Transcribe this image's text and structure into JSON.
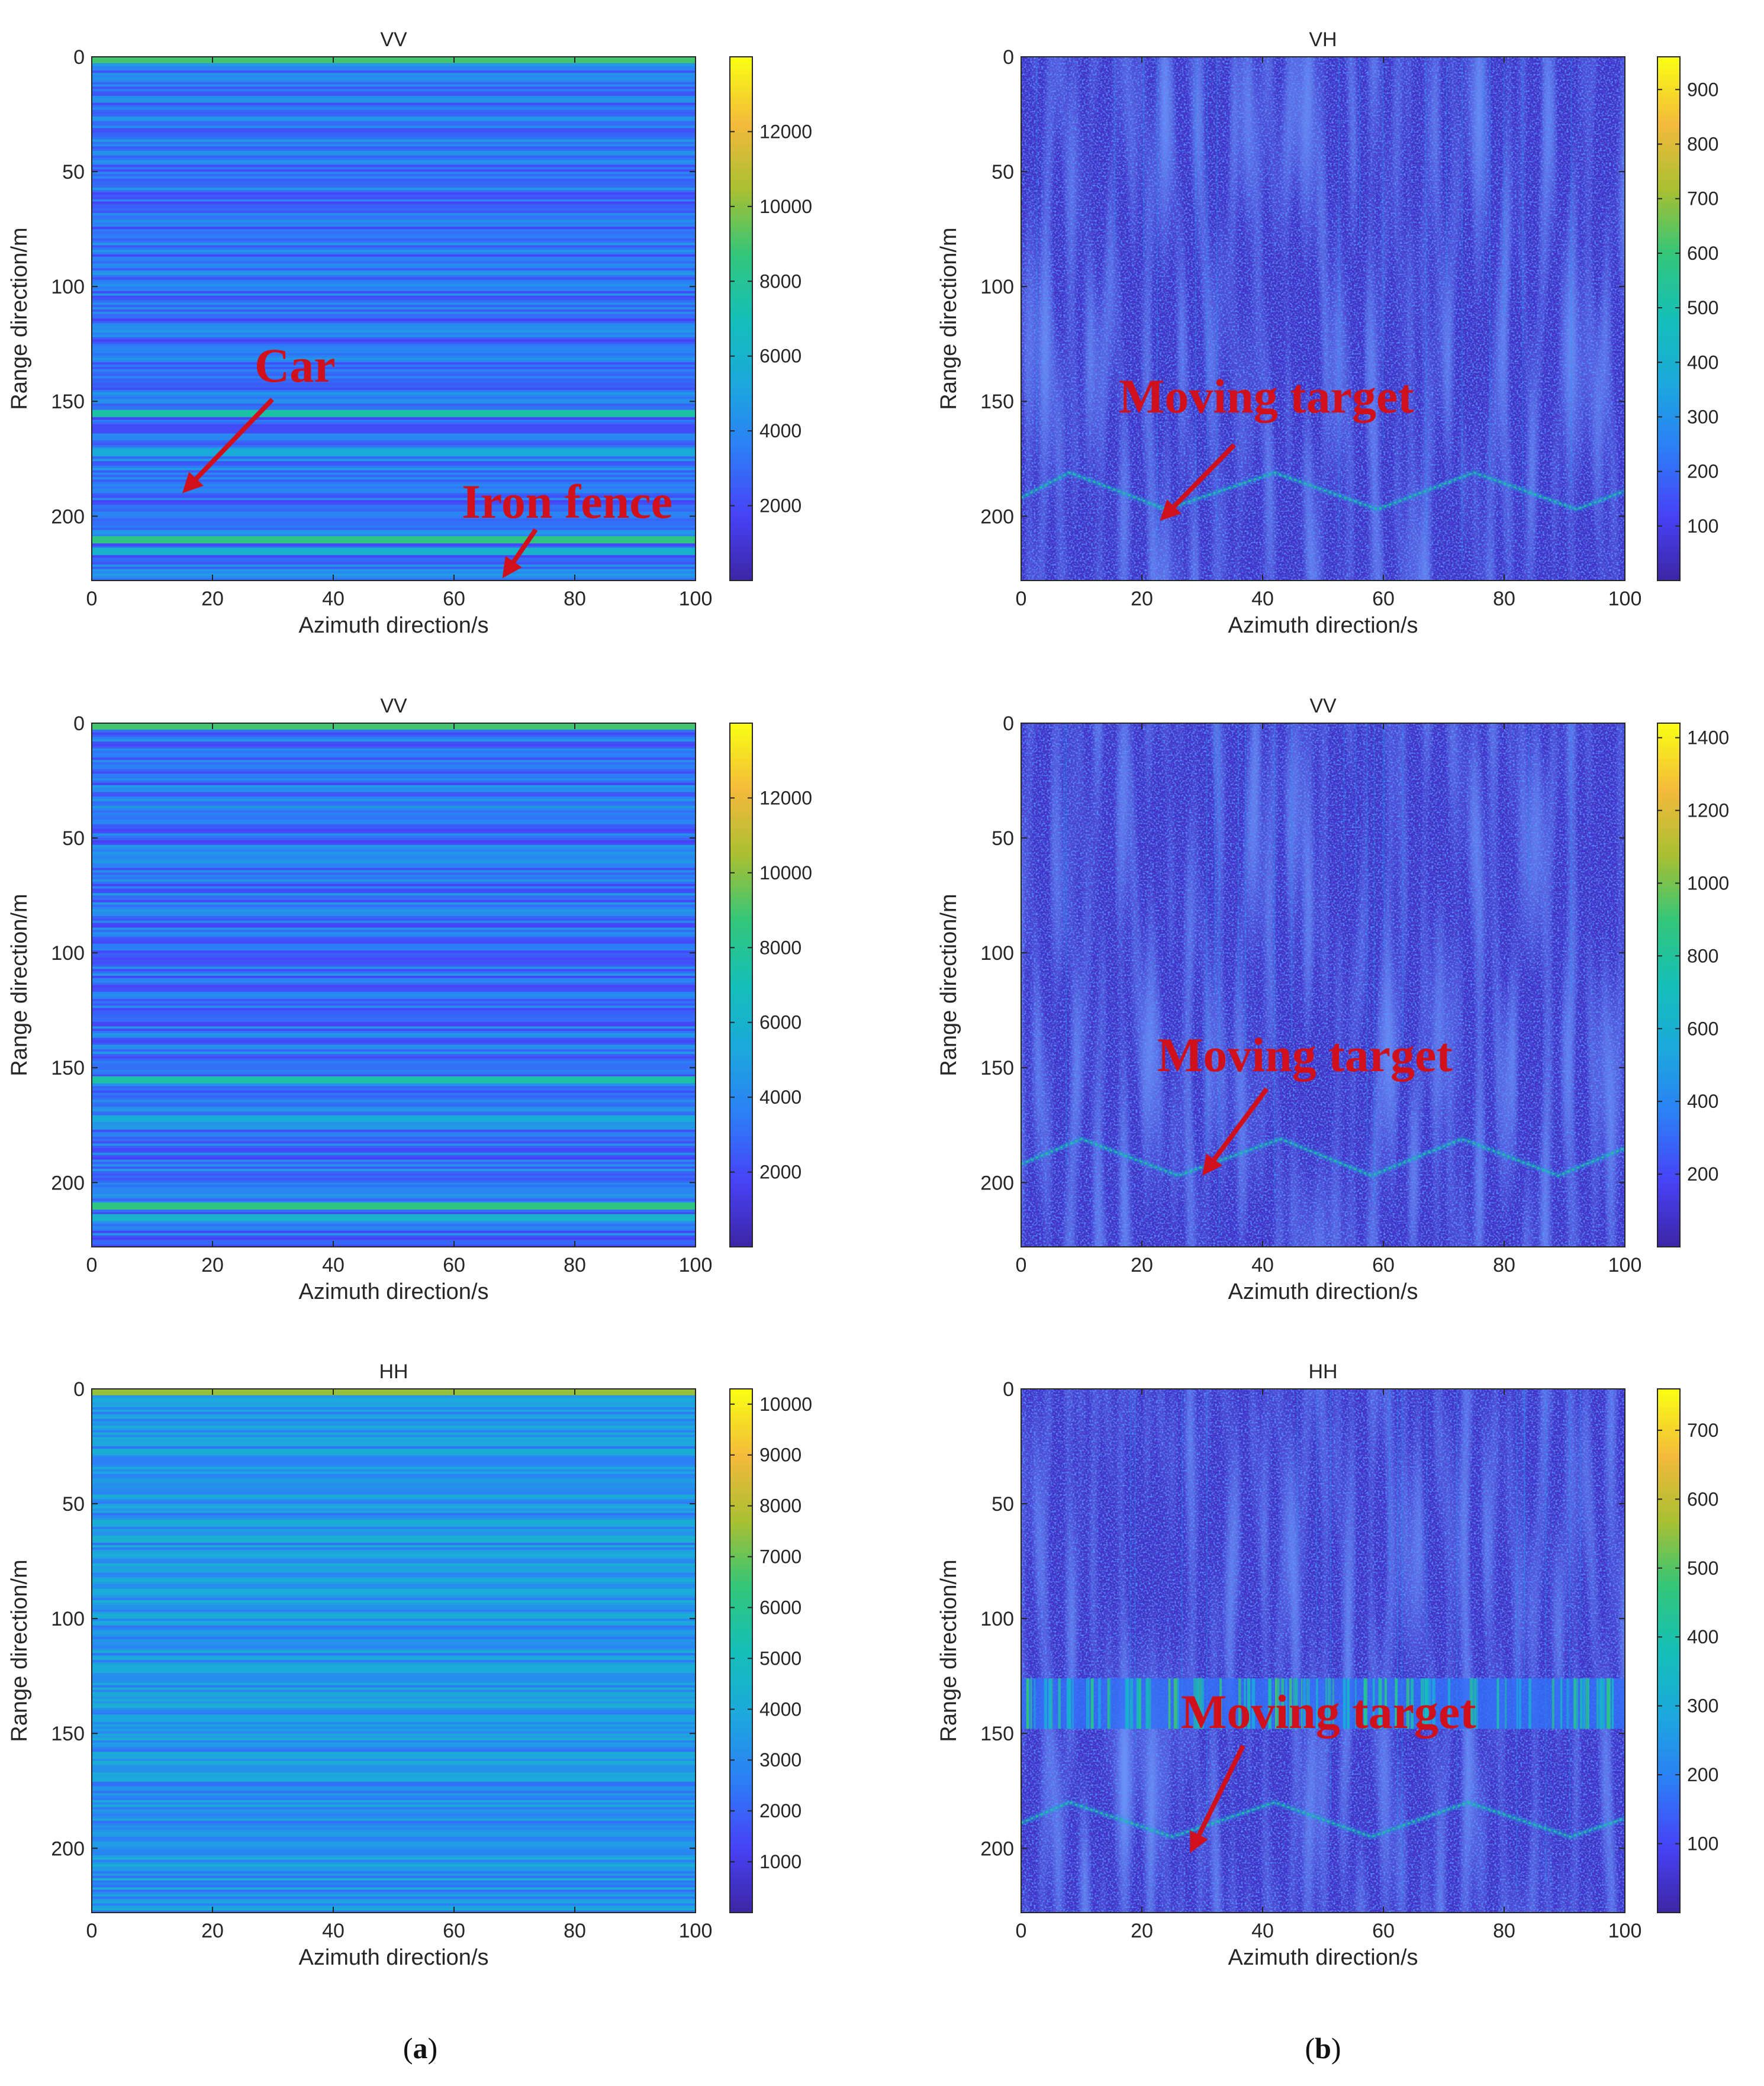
{
  "colors": {
    "annotation": "#d0101a",
    "colormap": [
      "#3e26a8",
      "#4743f8",
      "#2c7ef7",
      "#1ca8dd",
      "#14bfb8",
      "#32c67a",
      "#a8c030",
      "#f3b93b",
      "#f9fb15"
    ]
  },
  "figure": {
    "captions": [
      {
        "open": "(",
        "letter": "a",
        "close": ")"
      },
      {
        "open": "(",
        "letter": "b",
        "close": ")"
      }
    ]
  },
  "chart_data": [
    {
      "type": "heatmap",
      "id": "a1",
      "title": "VV",
      "xlabel": "Azimuth direction/s",
      "ylabel": "Range direction/m",
      "xlim": [
        0,
        100
      ],
      "ylim": [
        0,
        228
      ],
      "xticks": [
        0,
        20,
        40,
        60,
        80,
        100
      ],
      "yticks": [
        0,
        50,
        100,
        150,
        200
      ],
      "colorbar": {
        "range": [
          0,
          14000
        ],
        "ticks": [
          2000,
          4000,
          6000,
          8000,
          10000,
          12000
        ]
      },
      "pattern": "horizontal-bands",
      "bands": [
        {
          "range": 1,
          "value": 9000
        },
        {
          "range": 155,
          "value": 7500
        },
        {
          "range": 172,
          "value": 5500
        },
        {
          "range": 210,
          "value": 8500
        },
        {
          "range": 215,
          "value": 6000
        }
      ],
      "annotations": [
        {
          "text": "Car",
          "target": [
            15,
            190
          ]
        },
        {
          "text": "Iron fence",
          "target": [
            68,
            227
          ]
        }
      ]
    },
    {
      "type": "heatmap",
      "id": "b1",
      "title": "VH",
      "xlabel": "Azimuth direction/s",
      "ylabel": "Range direction/m",
      "xlim": [
        0,
        100
      ],
      "ylim": [
        0,
        228
      ],
      "xticks": [
        0,
        20,
        40,
        60,
        80,
        100
      ],
      "yticks": [
        0,
        50,
        100,
        150,
        200
      ],
      "colorbar": {
        "range": [
          0,
          960
        ],
        "ticks": [
          100,
          200,
          300,
          400,
          500,
          600,
          700,
          800,
          900
        ]
      },
      "pattern": "speckle",
      "target_track": [
        [
          0,
          192
        ],
        [
          8,
          181
        ],
        [
          24,
          197
        ],
        [
          42,
          181
        ],
        [
          59,
          197
        ],
        [
          75,
          181
        ],
        [
          92,
          197
        ],
        [
          100,
          189
        ]
      ],
      "annotations": [
        {
          "text": "Moving target",
          "target": [
            23,
            202
          ]
        }
      ]
    },
    {
      "type": "heatmap",
      "id": "a2",
      "title": "VV",
      "xlabel": "Azimuth direction/s",
      "ylabel": "Range direction/m",
      "xlim": [
        0,
        100
      ],
      "ylim": [
        0,
        228
      ],
      "xticks": [
        0,
        20,
        40,
        60,
        80,
        100
      ],
      "yticks": [
        0,
        50,
        100,
        150,
        200
      ],
      "colorbar": {
        "range": [
          0,
          14000
        ],
        "ticks": [
          2000,
          4000,
          6000,
          8000,
          10000,
          12000
        ]
      },
      "pattern": "horizontal-bands",
      "bands": [
        {
          "range": 1,
          "value": 9000
        },
        {
          "range": 155,
          "value": 7500
        },
        {
          "range": 172,
          "value": 5500
        },
        {
          "range": 210,
          "value": 8500
        },
        {
          "range": 215,
          "value": 6000
        }
      ],
      "annotations": []
    },
    {
      "type": "heatmap",
      "id": "b2",
      "title": "VV",
      "xlabel": "Azimuth direction/s",
      "ylabel": "Range direction/m",
      "xlim": [
        0,
        100
      ],
      "ylim": [
        0,
        228
      ],
      "xticks": [
        0,
        20,
        40,
        60,
        80,
        100
      ],
      "yticks": [
        0,
        50,
        100,
        150,
        200
      ],
      "colorbar": {
        "range": [
          0,
          1440
        ],
        "ticks": [
          200,
          400,
          600,
          800,
          1000,
          1200,
          1400
        ]
      },
      "pattern": "speckle",
      "target_track": [
        [
          0,
          192
        ],
        [
          10,
          181
        ],
        [
          26,
          197
        ],
        [
          43,
          181
        ],
        [
          58,
          197
        ],
        [
          73,
          181
        ],
        [
          89,
          197
        ],
        [
          100,
          185
        ]
      ],
      "annotations": [
        {
          "text": "Moving target",
          "target": [
            30,
            197
          ]
        }
      ]
    },
    {
      "type": "heatmap",
      "id": "a3",
      "title": "HH",
      "xlabel": "Azimuth direction/s",
      "ylabel": "Range direction/m",
      "xlim": [
        0,
        100
      ],
      "ylim": [
        0,
        228
      ],
      "xticks": [
        0,
        20,
        40,
        60,
        80,
        100
      ],
      "yticks": [
        0,
        50,
        100,
        150,
        200
      ],
      "colorbar": {
        "range": [
          0,
          10300
        ],
        "ticks": [
          1000,
          2000,
          3000,
          4000,
          5000,
          6000,
          7000,
          8000,
          9000,
          10000
        ]
      },
      "pattern": "horizontal-bands",
      "bands": [
        {
          "range": 1,
          "value": 7500
        },
        {
          "range": 122,
          "value": 4000
        },
        {
          "range": 143,
          "value": 3800
        },
        {
          "range": 165,
          "value": 3200
        }
      ],
      "annotations": []
    },
    {
      "type": "heatmap",
      "id": "b3",
      "title": "HH",
      "xlabel": "Azimuth direction/s",
      "ylabel": "Range direction/m",
      "xlim": [
        0,
        100
      ],
      "ylim": [
        0,
        228
      ],
      "xticks": [
        0,
        20,
        40,
        60,
        80,
        100
      ],
      "yticks": [
        0,
        50,
        100,
        150,
        200
      ],
      "colorbar": {
        "range": [
          0,
          760
        ],
        "ticks": [
          100,
          200,
          300,
          400,
          500,
          600,
          700
        ]
      },
      "pattern": "speckle",
      "bright_band": [
        126,
        148
      ],
      "target_track": [
        [
          0,
          189
        ],
        [
          8,
          180
        ],
        [
          25,
          195
        ],
        [
          42,
          180
        ],
        [
          58,
          195
        ],
        [
          74,
          180
        ],
        [
          91,
          195
        ],
        [
          100,
          187
        ]
      ],
      "annotations": [
        {
          "text": "Moving target",
          "target": [
            28,
            202
          ]
        }
      ]
    }
  ]
}
